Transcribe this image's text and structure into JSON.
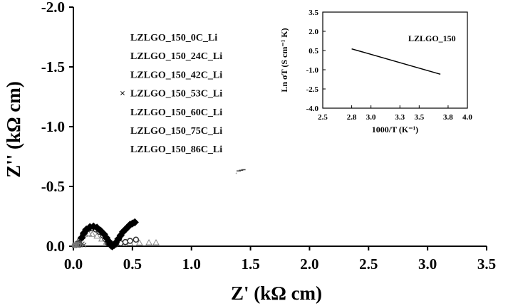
{
  "chart_data": [
    {
      "type": "scatter",
      "title": "",
      "xlabel": "Z' (kΩ cm)",
      "ylabel": "Z'' (kΩ cm)",
      "xlim": [
        0.0,
        3.5
      ],
      "ylim": [
        -2.0,
        0.0
      ],
      "y_inverted": true,
      "x_ticks": [
        "0.0",
        "0.5",
        "1.0",
        "1.5",
        "2.0",
        "2.5",
        "3.0",
        "3.5"
      ],
      "y_ticks": [
        "-2.0",
        "-1.5",
        "-1.0",
        "-0.5",
        "0.0"
      ],
      "legend": {
        "placement": "top-left",
        "entries": [
          "LZLGO_150_0C_Li",
          "LZLGO_150_24C_Li",
          "LZLGO_150_42C_Li",
          "LZLGO_150_53C_Li",
          "LZLGO_150_60C_Li",
          "LZLGO_150_75C_Li",
          "LZLGO_150_86C_Li"
        ]
      },
      "series": [
        {
          "name": "LZLGO_150_0C_Li",
          "marker": "filled-diamond",
          "x": [
            0.05,
            0.07,
            0.09,
            0.11,
            0.14,
            0.17,
            0.2,
            0.23,
            0.26,
            0.28,
            0.3,
            0.31,
            0.32,
            0.33,
            0.345,
            0.36,
            0.38,
            0.4,
            0.42,
            0.44,
            0.46,
            0.48,
            0.5,
            0.52
          ],
          "y": [
            -0.02,
            -0.07,
            -0.11,
            -0.14,
            -0.16,
            -0.165,
            -0.155,
            -0.13,
            -0.1,
            -0.07,
            -0.04,
            -0.02,
            -0.005,
            0.0,
            -0.01,
            -0.03,
            -0.06,
            -0.09,
            -0.12,
            -0.14,
            -0.16,
            -0.18,
            -0.19,
            -0.2
          ]
        },
        {
          "name": "LZLGO_150_24C_Li",
          "marker": "open-circle",
          "x": [
            0.04,
            0.06,
            0.08,
            0.1,
            0.13,
            0.16,
            0.19,
            0.22,
            0.25,
            0.27,
            0.29,
            0.32,
            0.36,
            0.4,
            0.44,
            0.48,
            0.53
          ],
          "y": [
            -0.02,
            -0.06,
            -0.1,
            -0.13,
            -0.145,
            -0.15,
            -0.14,
            -0.12,
            -0.09,
            -0.06,
            -0.03,
            -0.01,
            -0.015,
            -0.025,
            -0.035,
            -0.045,
            -0.055
          ]
        },
        {
          "name": "LZLGO_150_42C_Li",
          "marker": "open-triangle",
          "x": [
            0.02,
            0.04,
            0.06,
            0.08,
            0.1,
            0.13,
            0.16,
            0.2,
            0.24,
            0.28,
            0.33,
            0.4,
            0.48,
            0.56,
            0.64,
            0.7
          ],
          "y": [
            -0.01,
            -0.04,
            -0.07,
            -0.09,
            -0.1,
            -0.105,
            -0.1,
            -0.085,
            -0.06,
            -0.035,
            -0.02,
            -0.022,
            -0.025,
            -0.028,
            -0.03,
            -0.03
          ]
        },
        {
          "name": "LZLGO_150_53C_Li",
          "marker": "x",
          "x": [
            0.01,
            0.02,
            0.03,
            0.045,
            0.06,
            0.075,
            0.09
          ],
          "y": [
            -0.005,
            -0.015,
            -0.025,
            -0.03,
            -0.03,
            -0.02,
            -0.01
          ]
        },
        {
          "name": "LZLGO_150_60C_Li",
          "marker": "open-square",
          "x": [
            0.005,
            0.012,
            0.02,
            0.03,
            0.04,
            0.05
          ],
          "y": [
            -0.003,
            -0.01,
            -0.015,
            -0.017,
            -0.013,
            -0.006
          ]
        },
        {
          "name": "LZLGO_150_75C_Li",
          "marker": "dash",
          "x": [
            1.4,
            1.42,
            1.44
          ],
          "y": [
            -0.63,
            -0.635,
            -0.64
          ]
        },
        {
          "name": "LZLGO_150_86C_Li",
          "marker": "dot",
          "x": [
            1.38
          ],
          "y": [
            -0.61
          ]
        }
      ]
    },
    {
      "type": "line",
      "title": "",
      "note": "LZLGO_150",
      "xlabel": "1000/T (K⁻¹)",
      "ylabel": "Ln σT (S cm⁻¹ K)",
      "xlim": [
        2.5,
        4.0
      ],
      "ylim": [
        -4.0,
        3.5
      ],
      "x_ticks": [
        "2.5",
        "2.8",
        "3.0",
        "3.3",
        "3.5",
        "3.8",
        "4.0"
      ],
      "y_ticks": [
        "3.5",
        "2.0",
        "0.5",
        "-1.0",
        "-2.5",
        "-4.0"
      ],
      "series": [
        {
          "name": "",
          "x": [
            2.8,
            3.72
          ],
          "y": [
            0.63,
            -1.35
          ]
        }
      ]
    }
  ]
}
